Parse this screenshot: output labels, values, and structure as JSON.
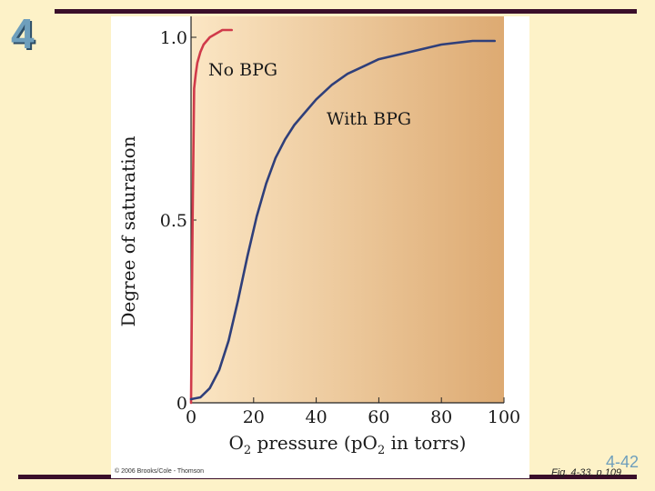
{
  "slide": {
    "chapter": "4",
    "page": "4-42",
    "figure_ref": "Fig. 4-33, p.109",
    "copyright": "© 2006 Brooks/Cole - Thomson",
    "accent_color": "#6f9fbc",
    "bar_color": "#3a0f2a"
  },
  "chart_data": {
    "type": "line",
    "title": "",
    "xlabel": "O2 pressure (pO2 in torrs)",
    "ylabel": "Degree of saturation",
    "xlim": [
      0,
      100
    ],
    "ylim": [
      0,
      1.0
    ],
    "x_ticks": [
      "0",
      "20",
      "40",
      "60",
      "80",
      "100"
    ],
    "y_ticks": [
      "0",
      "0.5",
      "1.0"
    ],
    "grid": false,
    "background_gradient": [
      "#fbe6c4",
      "#ddaa72"
    ],
    "series": [
      {
        "name": "No BPG",
        "color": "#d03a4a",
        "x": [
          0,
          0.5,
          1,
          1.5,
          2,
          3,
          4,
          5,
          6,
          8,
          10,
          13
        ],
        "y": [
          0.0,
          0.5,
          0.86,
          0.9,
          0.93,
          0.96,
          0.98,
          0.99,
          1.0,
          1.01,
          1.02,
          1.02
        ]
      },
      {
        "name": "With BPG",
        "color": "#2f3f7a",
        "x": [
          0,
          3,
          6,
          9,
          12,
          15,
          18,
          21,
          24,
          27,
          30,
          33,
          36,
          40,
          45,
          50,
          55,
          60,
          65,
          70,
          80,
          90,
          97
        ],
        "y": [
          0.01,
          0.015,
          0.04,
          0.09,
          0.17,
          0.28,
          0.4,
          0.51,
          0.6,
          0.67,
          0.72,
          0.76,
          0.79,
          0.83,
          0.87,
          0.9,
          0.92,
          0.94,
          0.95,
          0.96,
          0.98,
          0.99,
          0.99
        ]
      }
    ]
  }
}
